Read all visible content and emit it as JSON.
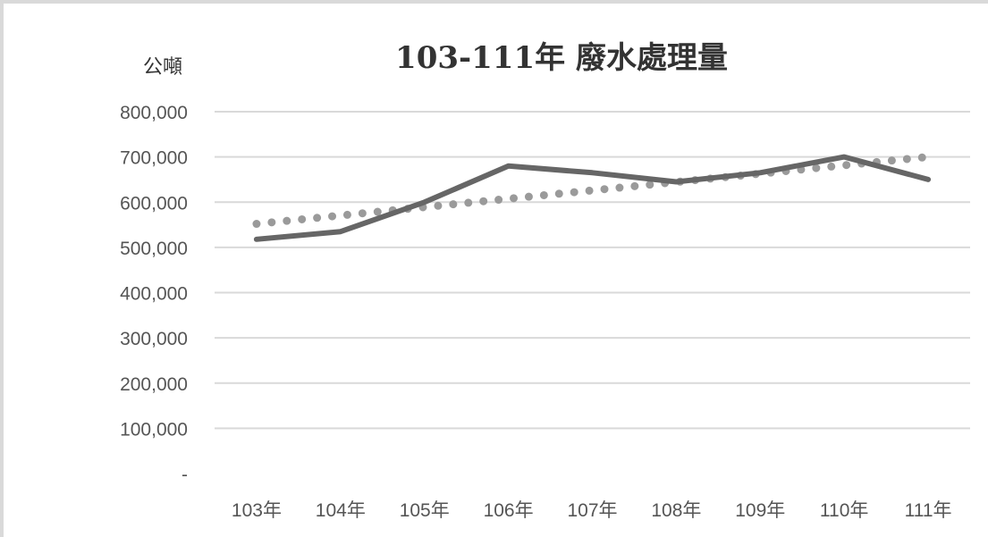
{
  "chart_data": {
    "type": "line",
    "title": "103-111年 廢水處理量",
    "ylabel": "公噸",
    "xlabel": "",
    "categories": [
      "103年",
      "104年",
      "105年",
      "106年",
      "107年",
      "108年",
      "109年",
      "110年",
      "111年"
    ],
    "series": [
      {
        "values": [
          518000,
          535000,
          600000,
          680000,
          665000,
          645000,
          665000,
          700000,
          650000
        ],
        "color": "#666666",
        "style": "solid"
      }
    ],
    "trendline": {
      "type": "linear",
      "start": 552000,
      "end": 700000,
      "color": "#9a9a9a",
      "style": "dotted"
    },
    "ylim": [
      0,
      800000
    ],
    "yticks": [
      "-",
      "100,000",
      "200,000",
      "300,000",
      "400,000",
      "500,000",
      "600,000",
      "700,000",
      "800,000"
    ],
    "grid": true,
    "legend": "none"
  }
}
